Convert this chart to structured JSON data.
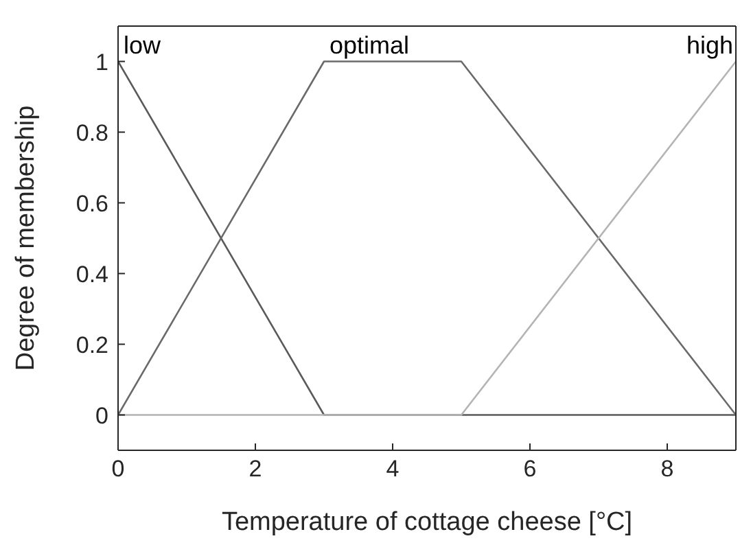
{
  "chart_data": {
    "type": "line",
    "xlabel": "Temperature of cottage cheese [°C]",
    "ylabel": "Degree of membership",
    "x": [
      0,
      3,
      5,
      9
    ],
    "series": [
      {
        "name": "low",
        "color": "#5a5a5a",
        "values": [
          1,
          0,
          0,
          0
        ]
      },
      {
        "name": "optimal",
        "color": "#6a6a6a",
        "values": [
          0,
          1,
          1,
          0
        ]
      },
      {
        "name": "high",
        "color": "#b4b4b4",
        "values": [
          0,
          0,
          0,
          1
        ]
      }
    ],
    "xlim": [
      0,
      9
    ],
    "xticks": [
      0,
      2,
      4,
      6,
      8
    ],
    "ylim": [
      -0.1,
      1.1
    ],
    "yticks": [
      0,
      0.2,
      0.4,
      0.6,
      0.8,
      1
    ],
    "grid": false,
    "legend": false,
    "marker": "none",
    "line_style": "solid"
  }
}
